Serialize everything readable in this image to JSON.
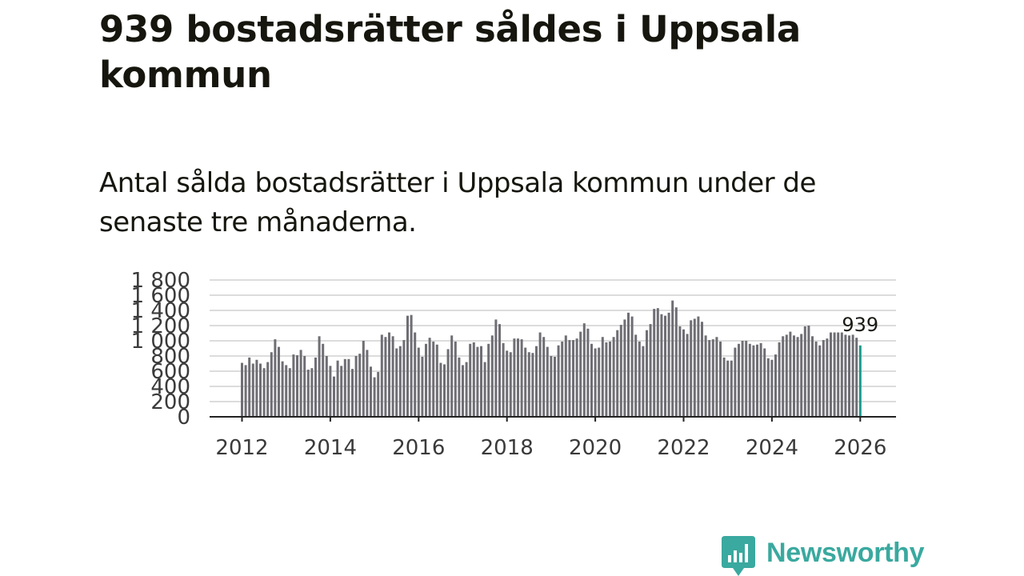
{
  "headline": "939 bostadsrätter såldes i Uppsala kommun",
  "subtitle": "Antal sålda bostadsrätter i Uppsala kommun under de senaste tre månaderna.",
  "brand": {
    "name": "Newsworthy",
    "color": "#3aa99f"
  },
  "chart_data": {
    "type": "bar",
    "title": "",
    "xlabel": "",
    "ylabel": "",
    "ylim": [
      0,
      1800
    ],
    "y_ticks": [
      0,
      200,
      400,
      600,
      800,
      1000,
      1200,
      1400,
      1600,
      1800
    ],
    "y_tick_labels": [
      "0",
      "200",
      "400",
      "600",
      "800",
      "1 000",
      "1 200",
      "1 400",
      "1 600",
      "1 800"
    ],
    "x_tick_labels": [
      "2012",
      "2014",
      "2016",
      "2018",
      "2020",
      "2022",
      "2024",
      "2026"
    ],
    "x_tick_years": [
      2012,
      2014,
      2016,
      2018,
      2020,
      2022,
      2024,
      2026
    ],
    "grid": true,
    "start": "2012-01",
    "frequency": "monthly",
    "bar_color": "#6f6e74",
    "highlight_color": "#1a9a8c",
    "highlight_label": "939",
    "values": [
      710,
      680,
      780,
      700,
      750,
      700,
      640,
      720,
      850,
      1020,
      920,
      730,
      680,
      640,
      820,
      810,
      880,
      800,
      620,
      640,
      780,
      1060,
      960,
      800,
      670,
      530,
      740,
      670,
      760,
      760,
      630,
      800,
      830,
      1000,
      880,
      660,
      520,
      590,
      1080,
      1050,
      1110,
      1060,
      900,
      930,
      1010,
      1330,
      1340,
      1110,
      910,
      790,
      960,
      1040,
      990,
      950,
      710,
      690,
      890,
      1070,
      990,
      780,
      680,
      720,
      960,
      980,
      920,
      930,
      720,
      960,
      1070,
      1280,
      1220,
      970,
      870,
      850,
      1030,
      1030,
      1020,
      910,
      850,
      840,
      930,
      1110,
      1050,
      920,
      800,
      790,
      940,
      990,
      1070,
      1010,
      1010,
      1030,
      1120,
      1230,
      1160,
      960,
      900,
      910,
      1050,
      980,
      990,
      1050,
      1140,
      1210,
      1280,
      1370,
      1320,
      1080,
      990,
      930,
      1140,
      1220,
      1420,
      1430,
      1350,
      1330,
      1370,
      1530,
      1440,
      1190,
      1150,
      1090,
      1270,
      1290,
      1320,
      1250,
      1070,
      1010,
      1020,
      1050,
      990,
      780,
      740,
      740,
      910,
      960,
      1000,
      1000,
      960,
      940,
      950,
      970,
      900,
      770,
      750,
      820,
      980,
      1060,
      1080,
      1120,
      1070,
      1050,
      1090,
      1190,
      1200,
      1060,
      990,
      940,
      1010,
      1030,
      1110,
      1110,
      1110,
      1110,
      1080,
      1070,
      1080,
      1040,
      939
    ]
  }
}
